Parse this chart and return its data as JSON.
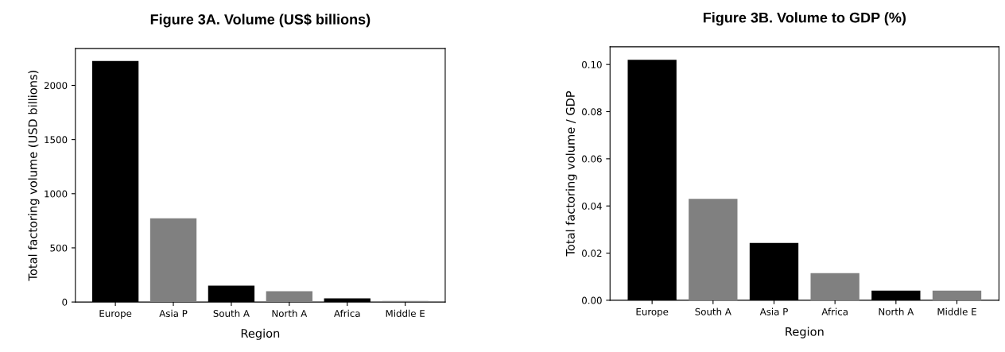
{
  "chart_data": [
    {
      "type": "bar",
      "title": "Figure 3A. Volume (US$ billions)",
      "xlabel": "Region",
      "ylabel": "Total factoring volume (USD billions)",
      "categories": [
        "Europe",
        "Asia P",
        "South A",
        "North A",
        "Africa",
        "Middle E"
      ],
      "values": [
        2225,
        773,
        152,
        100,
        34,
        10
      ],
      "colors": [
        "#000000",
        "#808080",
        "#000000",
        "#808080",
        "#000000",
        "#808080"
      ],
      "ylim": [
        0,
        2340
      ],
      "yticks": [
        0,
        500,
        1000,
        1500,
        2000
      ],
      "grid": false
    },
    {
      "type": "bar",
      "title": "Figure 3B. Volume to GDP (%)",
      "xlabel": "Region",
      "ylabel": "Total factoring volume / GDP",
      "categories": [
        "Europe",
        "South A",
        "Asia P",
        "Africa",
        "North A",
        "Middle E"
      ],
      "values": [
        0.102,
        0.043,
        0.0243,
        0.0115,
        0.0041,
        0.0041
      ],
      "colors": [
        "#000000",
        "#808080",
        "#000000",
        "#808080",
        "#000000",
        "#808080"
      ],
      "ylim": [
        0,
        0.1075
      ],
      "yticks": [
        {
          "value": 0,
          "label": "0.00"
        },
        {
          "value": 0.02,
          "label": "0.02"
        },
        {
          "value": 0.04,
          "label": "0.04"
        },
        {
          "value": 0.06,
          "label": "0.06"
        },
        {
          "value": 0.08,
          "label": "0.08"
        },
        {
          "value": 0.1,
          "label": "0.10"
        }
      ],
      "grid": false
    }
  ]
}
